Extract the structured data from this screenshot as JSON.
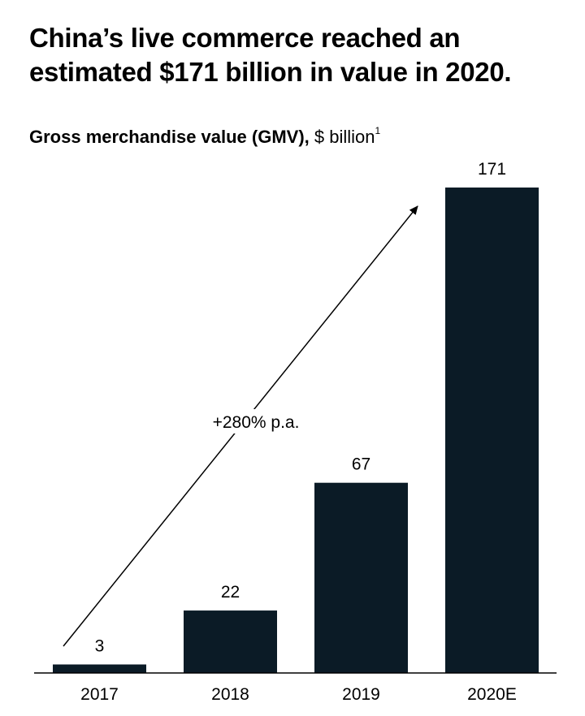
{
  "title": "China’s live commerce reached an estimated $171 billion in value in 2020.",
  "subtitle": {
    "bold": "Gross merchandise value (GMV),",
    "normal": " $ billion",
    "footnote": "1"
  },
  "colors": {
    "bar": "#0b1b26",
    "axis": "#000000",
    "text": "#000000"
  },
  "annotation": {
    "label": "+280% p.a."
  },
  "chart_data": {
    "type": "bar",
    "title": "China’s live commerce reached an estimated $171 billion in value in 2020.",
    "ylabel": "Gross merchandise value (GMV), $ billion",
    "xlabel": "",
    "categories": [
      "2017",
      "2018",
      "2019",
      "2020E"
    ],
    "values": [
      3,
      22,
      67,
      171
    ],
    "data_labels": [
      "3",
      "22",
      "67",
      "171"
    ],
    "ylim": [
      0,
      171
    ],
    "grid": false,
    "annotations": [
      "+280% p.a."
    ]
  }
}
